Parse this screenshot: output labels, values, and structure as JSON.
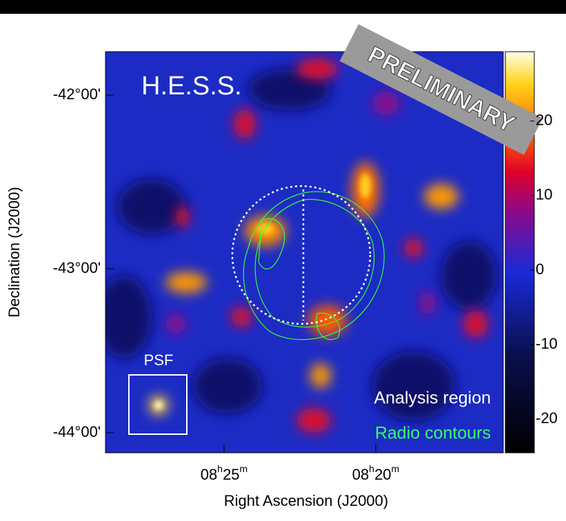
{
  "map": {
    "title": "H.E.S.S.",
    "stamp": "PRELIMINARY",
    "psf_label": "PSF",
    "legend": {
      "region": "Analysis region",
      "contours": "Radio contours"
    },
    "x_axis": {
      "label": "Right Ascension (J2000)",
      "ticks": [
        [
          "08",
          "h",
          "25",
          "m"
        ],
        [
          "08",
          "h",
          "20",
          "m"
        ]
      ]
    },
    "y_axis": {
      "label": "Declination (J2000)",
      "ticks": [
        "-42°00'",
        "-43°00'",
        "-44°00'"
      ]
    },
    "colorbar": {
      "lim": [
        -24.5,
        29.3
      ],
      "ticks": [
        20,
        10,
        0,
        -10,
        -20
      ]
    }
  }
}
